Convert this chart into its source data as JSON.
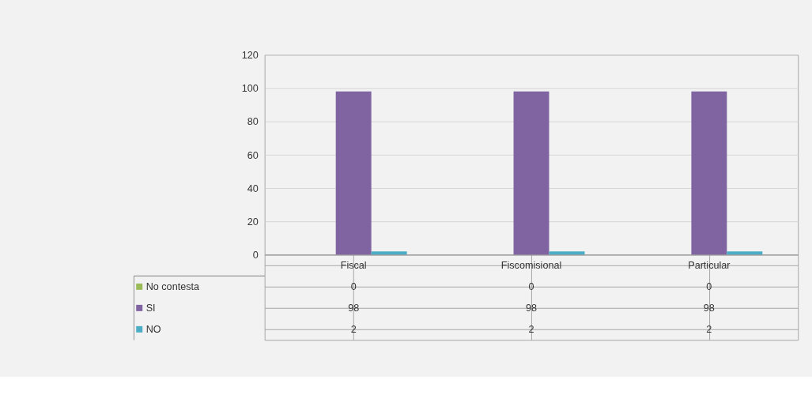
{
  "chart_data": {
    "type": "bar",
    "categories": [
      "Fiscal",
      "Fiscomisional",
      "Particular"
    ],
    "series": [
      {
        "name": "No contesta",
        "color": "#9bbb59",
        "values": [
          0,
          0,
          0
        ]
      },
      {
        "name": "SI",
        "color": "#8064a2",
        "values": [
          98,
          98,
          98
        ]
      },
      {
        "name": "NO",
        "color": "#4bacc6",
        "values": [
          2,
          2,
          2
        ]
      }
    ],
    "ylim": [
      0,
      120
    ],
    "yticks": [
      0,
      20,
      40,
      60,
      80,
      100,
      120
    ],
    "grid": "y",
    "legend": "bottom",
    "data_labels": true
  }
}
